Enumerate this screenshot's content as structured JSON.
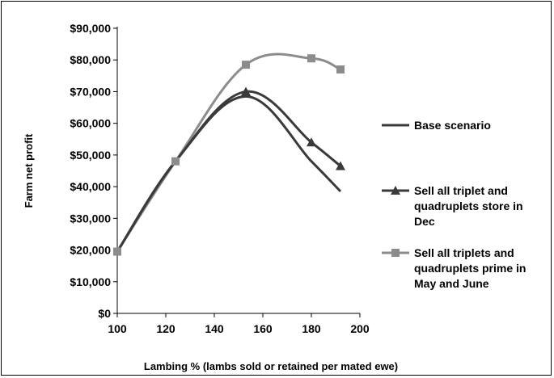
{
  "chart_data": {
    "type": "line",
    "title": "",
    "xlabel": "Lambing % (lambs sold or retained per mated ewe)",
    "ylabel": "Farm net profit",
    "xlim": [
      100,
      200
    ],
    "ylim": [
      0,
      90000
    ],
    "x_ticks": [
      100,
      120,
      140,
      160,
      180,
      200
    ],
    "y_ticks": [
      0,
      10000,
      20000,
      30000,
      40000,
      50000,
      60000,
      70000,
      80000,
      90000
    ],
    "y_tick_labels": [
      "$0",
      "$10,000",
      "$20,000",
      "$30,000",
      "$40,000",
      "$50,000",
      "$60,000",
      "$70,000",
      "$80,000",
      "$90,000"
    ],
    "x_tick_labels": [
      "100",
      "120",
      "140",
      "160",
      "180",
      "200"
    ],
    "grid": false,
    "legend_position": "right",
    "series": [
      {
        "name": "Base scenario",
        "x": [
          100,
          124,
          153,
          180,
          192
        ],
        "y": [
          19500,
          48000,
          68500,
          48000,
          38500
        ],
        "marker": "none",
        "color": "#3a3a3a"
      },
      {
        "name": "Sell all triplet and quadruplets store in Dec",
        "x": [
          100,
          124,
          153,
          180,
          192
        ],
        "y": [
          19500,
          48000,
          70000,
          54000,
          46500
        ],
        "marker": "triangle",
        "color": "#3a3a3a"
      },
      {
        "name": "Sell all triplets and quadruplets prime in May and June",
        "x": [
          100,
          124,
          153,
          180,
          192
        ],
        "y": [
          19500,
          48000,
          78500,
          80500,
          77000
        ],
        "marker": "square",
        "color": "#8c8c8c"
      }
    ],
    "legend_lines": [
      [
        "Base scenario"
      ],
      [
        "Sell all triplet and",
        "quadruplets store in",
        "Dec"
      ],
      [
        "Sell all triplets and",
        "quadruplets prime in",
        "May and June"
      ]
    ]
  }
}
